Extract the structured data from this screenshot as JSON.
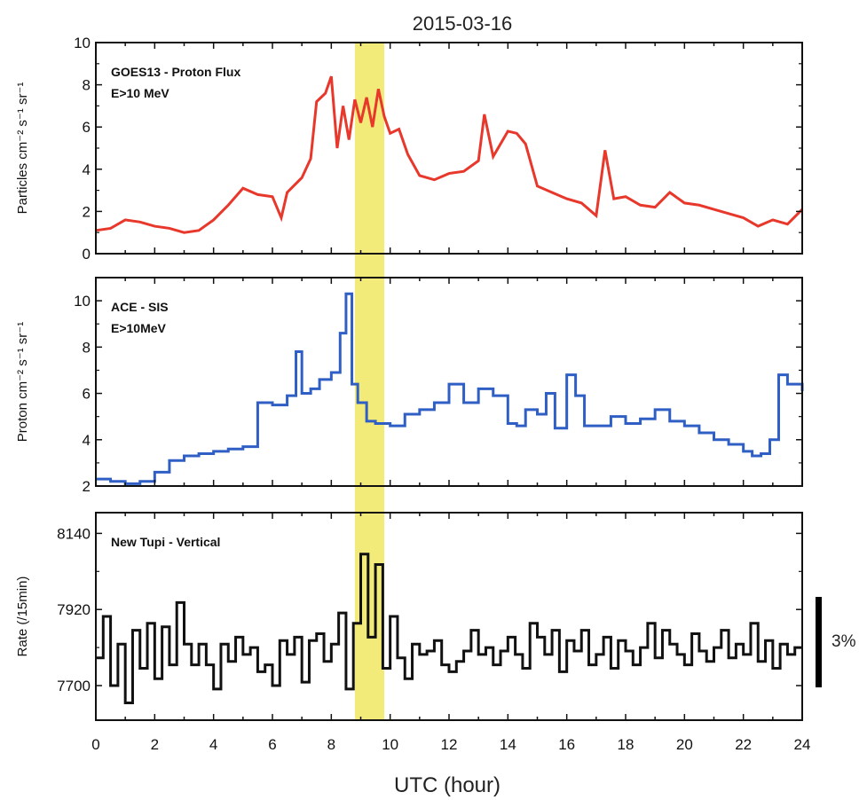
{
  "figure": {
    "title": "2015-03-16",
    "xlabel": "UTC (hour)",
    "x_ticks": [
      "0",
      "2",
      "4",
      "6",
      "8",
      "10",
      "12",
      "14",
      "16",
      "18",
      "20",
      "22",
      "24"
    ],
    "highlight_color": "#f2eb7a"
  },
  "chart_data": [
    {
      "type": "line",
      "panel_label_lines": [
        "GOES13 - Proton Flux",
        "E>10 MeV"
      ],
      "ylabel": "Particles cm⁻² s⁻¹ sr⁻¹",
      "xlim": [
        0,
        24
      ],
      "ylim": [
        0,
        10
      ],
      "y_ticks": [
        "0",
        "2",
        "4",
        "6",
        "8",
        "10"
      ],
      "highlight_x": [
        8.8,
        9.8
      ],
      "color": "#e8372b",
      "step": false,
      "series": [
        {
          "x": [
            0,
            0.5,
            1,
            1.5,
            2,
            2.5,
            3,
            3.5,
            4,
            4.5,
            5,
            5.5,
            6,
            6.3,
            6.5,
            7,
            7.3,
            7.5,
            7.8,
            8,
            8.2,
            8.4,
            8.6,
            8.8,
            9,
            9.2,
            9.4,
            9.6,
            9.8,
            10,
            10.3,
            10.6,
            11,
            11.5,
            12,
            12.5,
            13,
            13.2,
            13.5,
            14,
            14.3,
            14.6,
            15,
            15.5,
            16,
            16.5,
            17,
            17.3,
            17.6,
            18,
            18.5,
            19,
            19.5,
            20,
            20.5,
            21,
            21.5,
            22,
            22.5,
            23,
            23.5,
            24
          ],
          "y": [
            1.1,
            1.2,
            1.6,
            1.5,
            1.3,
            1.2,
            1.0,
            1.1,
            1.6,
            2.3,
            3.1,
            2.8,
            2.7,
            1.7,
            2.9,
            3.6,
            4.5,
            7.2,
            7.6,
            8.4,
            5.0,
            7.0,
            5.4,
            7.3,
            6.2,
            7.4,
            6.0,
            7.8,
            6.5,
            5.7,
            5.9,
            4.7,
            3.7,
            3.5,
            3.8,
            3.9,
            4.4,
            6.6,
            4.6,
            5.8,
            5.7,
            5.2,
            3.2,
            2.9,
            2.6,
            2.4,
            1.8,
            4.9,
            2.6,
            2.7,
            2.3,
            2.2,
            2.9,
            2.4,
            2.3,
            2.1,
            1.9,
            1.7,
            1.3,
            1.6,
            1.4,
            2.1
          ]
        }
      ]
    },
    {
      "type": "line",
      "panel_label_lines": [
        "ACE - SIS",
        "E>10MeV"
      ],
      "ylabel": "Proton cm⁻² s⁻¹ sr⁻¹",
      "xlim": [
        0,
        24
      ],
      "ylim": [
        2,
        11
      ],
      "y_ticks": [
        "2",
        "4",
        "6",
        "8",
        "10"
      ],
      "highlight_x": [
        8.8,
        9.8
      ],
      "color": "#2f5fc4",
      "step": true,
      "series": [
        {
          "x": [
            0,
            0.5,
            1,
            1.5,
            2,
            2.5,
            3,
            3.5,
            4,
            4.5,
            5,
            5.5,
            6,
            6.5,
            6.8,
            7,
            7.3,
            7.6,
            8,
            8.3,
            8.5,
            8.7,
            8.9,
            9.2,
            9.5,
            10,
            10.5,
            11,
            11.5,
            12,
            12.5,
            13,
            13.5,
            14,
            14.3,
            14.6,
            15,
            15.3,
            15.6,
            16,
            16.3,
            16.6,
            17,
            17.5,
            18,
            18.5,
            19,
            19.5,
            20,
            20.5,
            21,
            21.5,
            22,
            22.3,
            22.6,
            22.9,
            23.2,
            23.5,
            24
          ],
          "y": [
            2.3,
            2.2,
            2.1,
            2.2,
            2.6,
            3.1,
            3.3,
            3.4,
            3.5,
            3.6,
            3.7,
            5.6,
            5.5,
            5.9,
            7.8,
            6.0,
            6.2,
            6.6,
            6.9,
            8.6,
            10.3,
            6.4,
            5.6,
            4.8,
            4.7,
            4.6,
            5.1,
            5.3,
            5.6,
            6.4,
            5.6,
            6.2,
            5.9,
            4.7,
            4.6,
            5.3,
            5.1,
            6.0,
            4.5,
            6.8,
            5.9,
            4.6,
            4.6,
            5.0,
            4.7,
            4.9,
            5.3,
            4.8,
            4.6,
            4.3,
            4.0,
            3.8,
            3.5,
            3.3,
            3.4,
            4.0,
            6.8,
            6.4,
            6.1
          ]
        }
      ]
    },
    {
      "type": "line",
      "panel_label_lines": [
        "New Tupi - Vertical"
      ],
      "ylabel": "Rate (/15min)",
      "xlim": [
        0,
        24
      ],
      "ylim": [
        7600,
        8200
      ],
      "y_ticks": [
        "7700",
        "7920",
        "8140"
      ],
      "highlight_x": [
        8.8,
        9.8
      ],
      "color": "#111111",
      "step": true,
      "scale_bar_label": "3%",
      "series": [
        {
          "x": [
            0,
            0.25,
            0.5,
            0.75,
            1,
            1.25,
            1.5,
            1.75,
            2,
            2.25,
            2.5,
            2.75,
            3,
            3.25,
            3.5,
            3.75,
            4,
            4.25,
            4.5,
            4.75,
            5,
            5.25,
            5.5,
            5.75,
            6,
            6.25,
            6.5,
            6.75,
            7,
            7.25,
            7.5,
            7.75,
            8,
            8.25,
            8.5,
            8.75,
            9,
            9.25,
            9.5,
            9.75,
            10,
            10.25,
            10.5,
            10.75,
            11,
            11.25,
            11.5,
            11.75,
            12,
            12.25,
            12.5,
            12.75,
            13,
            13.25,
            13.5,
            13.75,
            14,
            14.25,
            14.5,
            14.75,
            15,
            15.25,
            15.5,
            15.75,
            16,
            16.25,
            16.5,
            16.75,
            17,
            17.25,
            17.5,
            17.75,
            18,
            18.25,
            18.5,
            18.75,
            19,
            19.25,
            19.5,
            19.75,
            20,
            20.25,
            20.5,
            20.75,
            21,
            21.25,
            21.5,
            21.75,
            22,
            22.25,
            22.5,
            22.75,
            23,
            23.25,
            23.5,
            23.75
          ],
          "y": [
            7780,
            7900,
            7700,
            7820,
            7650,
            7860,
            7750,
            7880,
            7720,
            7870,
            7760,
            7940,
            7820,
            7760,
            7820,
            7760,
            7690,
            7820,
            7770,
            7840,
            7790,
            7810,
            7740,
            7760,
            7700,
            7830,
            7790,
            7840,
            7710,
            7830,
            7850,
            7770,
            7820,
            7910,
            7690,
            7880,
            8080,
            7840,
            8050,
            7750,
            7900,
            7780,
            7720,
            7820,
            7790,
            7800,
            7830,
            7760,
            7740,
            7770,
            7800,
            7860,
            7790,
            7810,
            7760,
            7800,
            7840,
            7790,
            7750,
            7880,
            7840,
            7790,
            7860,
            7740,
            7830,
            7800,
            7860,
            7760,
            7790,
            7840,
            7750,
            7830,
            7800,
            7760,
            7810,
            7880,
            7780,
            7860,
            7820,
            7790,
            7760,
            7850,
            7800,
            7770,
            7810,
            7860,
            7780,
            7820,
            7790,
            7880,
            7770,
            7830,
            7750,
            7820,
            7790,
            7810
          ]
        }
      ]
    }
  ]
}
